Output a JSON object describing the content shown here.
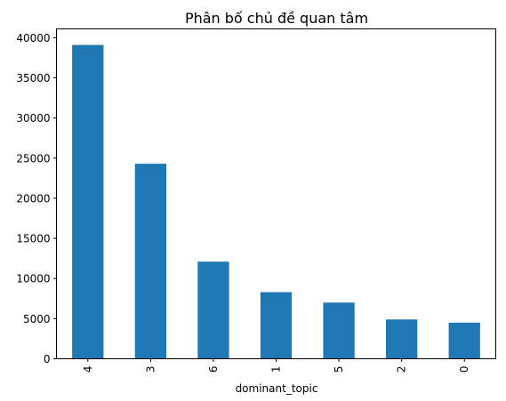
{
  "chart_data": {
    "type": "bar",
    "title": "Phân bố chủ đề quan tâm",
    "xlabel": "dominant_topic",
    "ylabel": "",
    "categories": [
      "4",
      "3",
      "6",
      "1",
      "5",
      "2",
      "0"
    ],
    "values": [
      39100,
      24300,
      12100,
      8300,
      7000,
      4900,
      4500
    ],
    "ylim": [
      0,
      41100
    ],
    "yticks": [
      0,
      5000,
      10000,
      15000,
      20000,
      25000,
      30000,
      35000,
      40000
    ],
    "ytick_labels": [
      "0",
      "5000",
      "10000",
      "15000",
      "20000",
      "25000",
      "30000",
      "35000",
      "40000"
    ],
    "x_tick_rotation": 90,
    "grid": false,
    "colors": {
      "bar": "#1f77b4"
    }
  }
}
